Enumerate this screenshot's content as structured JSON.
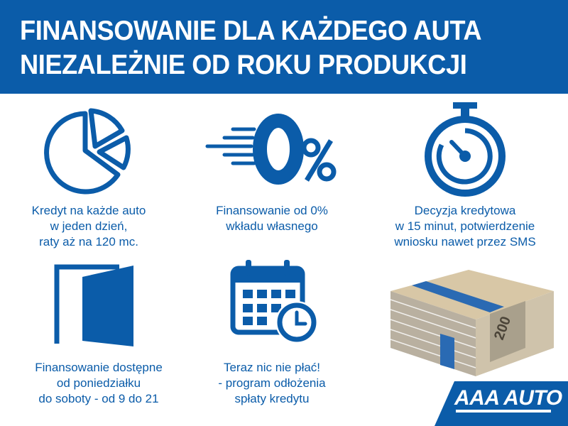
{
  "header": {
    "line1": "FINANSOWANIE DLA KAŻDEGO AUTA",
    "line2": "NIEZALEŻNIE OD ROKU PRODUKCJI"
  },
  "features": [
    {
      "icon": "pie-chart-icon",
      "lines": [
        "Kredyt na każde auto",
        "w jeden dzień,",
        "raty aż na 120 mc."
      ]
    },
    {
      "icon": "zero-percent-icon",
      "lines": [
        "Finansowanie od 0%",
        "wkładu własnego"
      ]
    },
    {
      "icon": "stopwatch-icon",
      "lines": [
        "Decyzja kredytowa",
        "w 15 minut, potwierdzenie",
        "wniosku nawet przez SMS"
      ]
    },
    {
      "icon": "open-door-icon",
      "lines": [
        "Finansowanie dostępne",
        "od poniedziałku",
        "do soboty - od 9 do 21"
      ]
    },
    {
      "icon": "calendar-clock-icon",
      "lines": [
        "Teraz nic nie płać!",
        "- program odłożenia",
        "spłaty kredytu"
      ]
    },
    {
      "icon": "money-stack-icon",
      "lines": []
    }
  ],
  "logo": {
    "text": "AAA AUTO"
  },
  "colors": {
    "brand_blue": "#0b5ca9",
    "white": "#ffffff"
  }
}
